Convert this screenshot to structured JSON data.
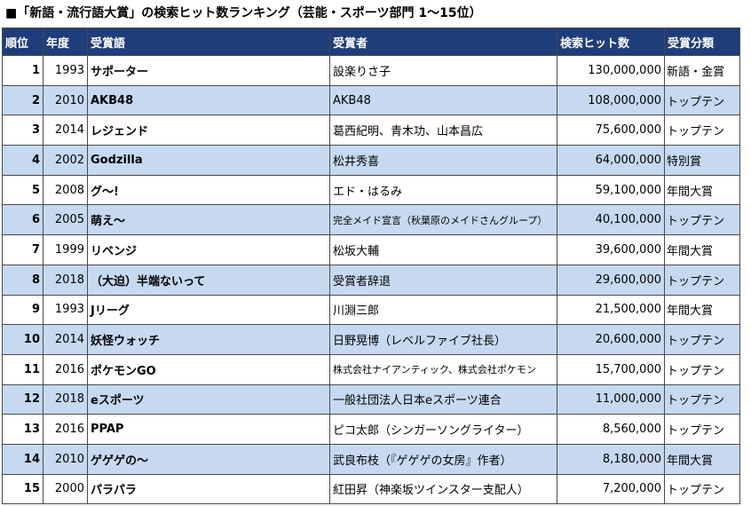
{
  "title": "■「新語・流行語大賞」の検索ヒット数ランキング（芸能・スポーツ部門 1〜15位）",
  "columns": {
    "rank": "順位",
    "year": "年度",
    "word": "受賞語",
    "winner": "受賞者",
    "hits": "検索ヒット数",
    "category": "受賞分類"
  },
  "rows": [
    {
      "rank": "1",
      "year": "1993",
      "word": "サポーター",
      "winner": "設楽りさ子",
      "hits": "130,000,000",
      "category": "新語・金賞"
    },
    {
      "rank": "2",
      "year": "2010",
      "word": "AKB48",
      "winner": "AKB48",
      "hits": "108,000,000",
      "category": "トップテン"
    },
    {
      "rank": "3",
      "year": "2014",
      "word": "レジェンド",
      "winner": "葛西紀明、青木功、山本昌広",
      "hits": "75,600,000",
      "category": "トップテン"
    },
    {
      "rank": "4",
      "year": "2002",
      "word": "Godzilla",
      "winner": "松井秀喜",
      "hits": "64,000,000",
      "category": "特別賞"
    },
    {
      "rank": "5",
      "year": "2008",
      "word": "グ〜!",
      "winner": "エド・はるみ",
      "hits": "59,100,000",
      "category": "年間大賞"
    },
    {
      "rank": "6",
      "year": "2005",
      "word": "萌え〜",
      "winner": "完全メイド宣言（秋葉原のメイドさんグループ）",
      "hits": "40,100,000",
      "category": "トップテン"
    },
    {
      "rank": "7",
      "year": "1999",
      "word": "リベンジ",
      "winner": "松坂大輔",
      "hits": "39,600,000",
      "category": "年間大賞"
    },
    {
      "rank": "8",
      "year": "2018",
      "word": "（大迫）半端ないって",
      "winner": "受賞者辞退",
      "hits": "29,600,000",
      "category": "トップテン"
    },
    {
      "rank": "9",
      "year": "1993",
      "word": "Jリーグ",
      "winner": "川淵三郎",
      "hits": "21,500,000",
      "category": "年間大賞"
    },
    {
      "rank": "10",
      "year": "2014",
      "word": "妖怪ウォッチ",
      "winner": "日野晃博（レベルファイブ社長）",
      "hits": "20,600,000",
      "category": "トップテン"
    },
    {
      "rank": "11",
      "year": "2016",
      "word": "ポケモンGO",
      "winner": "株式会社ナイアンティック、株式会社ポケモン",
      "hits": "15,700,000",
      "category": "トップテン"
    },
    {
      "rank": "12",
      "year": "2018",
      "word": "eスポーツ",
      "winner": "一般社団法人日本eスポーツ連合",
      "hits": "11,000,000",
      "category": "トップテン"
    },
    {
      "rank": "13",
      "year": "2016",
      "word": "PPAP",
      "winner": "ピコ太郎（シンガーソングライター）",
      "hits": "8,560,000",
      "category": "トップテン"
    },
    {
      "rank": "14",
      "year": "2010",
      "word": "ゲゲゲの〜",
      "winner": "武良布枝（『ゲゲゲの女房』作者）",
      "hits": "8,180,000",
      "category": "年間大賞"
    },
    {
      "rank": "15",
      "year": "2000",
      "word": "パラパラ",
      "winner": "紅田昇（神楽坂ツインスター支配人）",
      "hits": "7,200,000",
      "category": "トップテン"
    }
  ],
  "colors": {
    "header_bg": "#1f3d7a",
    "header_text": "#ffffff",
    "stripe": "#c6d9f1",
    "row": "#ffffff"
  }
}
